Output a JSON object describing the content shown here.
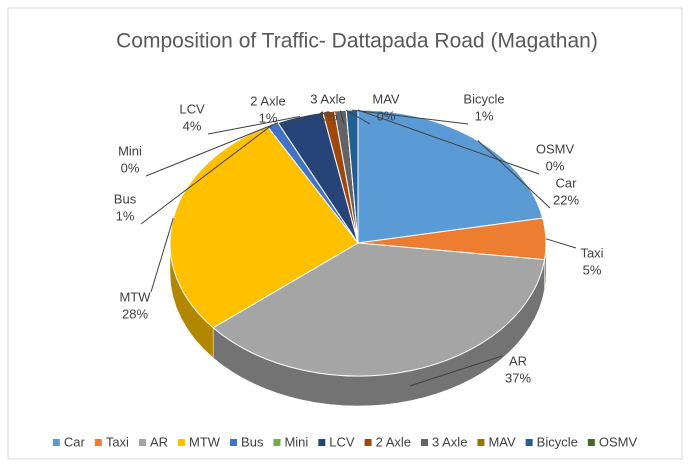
{
  "chart_data": {
    "type": "pie3d",
    "title": "Composition of Traffic- Dattapada Road (Magathan)",
    "categories": [
      "Car",
      "Taxi",
      "AR",
      "MTW",
      "Bus",
      "Mini",
      "LCV",
      "2 Axle",
      "3 Axle",
      "MAV",
      "Bicycle",
      "OSMV"
    ],
    "values": [
      22,
      5,
      37,
      28,
      1,
      0,
      4,
      1,
      1,
      0,
      1,
      0
    ],
    "value_labels": [
      "22%",
      "5%",
      "37%",
      "28%",
      "1%",
      "0%",
      "4%",
      "1%",
      "1%",
      "0%",
      "1%",
      "0%"
    ],
    "colors": [
      "#5b9bd5",
      "#ed7d31",
      "#a5a5a5",
      "#ffc000",
      "#4472c4",
      "#70ad47",
      "#264478",
      "#9e480e",
      "#636363",
      "#997300",
      "#255e91",
      "#43682b"
    ],
    "legend": "bottom"
  }
}
